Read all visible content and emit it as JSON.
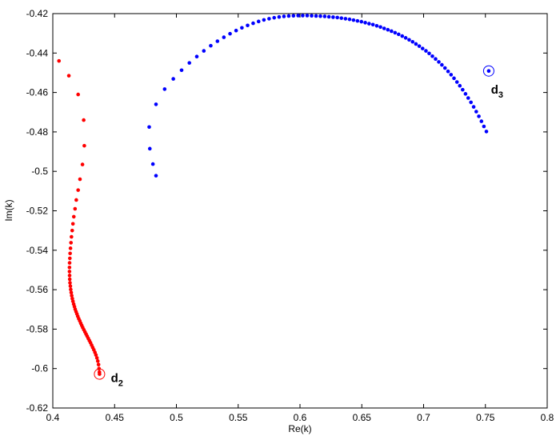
{
  "chart_data": {
    "type": "scatter",
    "xlabel": "Re(k)",
    "ylabel": "Im(k)",
    "xlim": [
      0.4,
      0.8
    ],
    "ylim": [
      -0.62,
      -0.42
    ],
    "xticks": [
      "0.4",
      "0.45",
      "0.5",
      "0.55",
      "0.6",
      "0.65",
      "0.7",
      "0.75",
      "0.8"
    ],
    "yticks": [
      "-0.42",
      "-0.44",
      "-0.46",
      "-0.48",
      "-0.5",
      "-0.52",
      "-0.54",
      "-0.56",
      "-0.58",
      "-0.6",
      "-0.62"
    ],
    "grid": false,
    "series": [
      {
        "color": "#ff0000",
        "marker": "dot",
        "points": [
          [
            0.405,
            -0.444
          ],
          [
            0.413,
            -0.4515
          ],
          [
            0.4205,
            -0.461
          ],
          [
            0.425,
            -0.474
          ],
          [
            0.4255,
            -0.487
          ],
          [
            0.424,
            -0.4965
          ],
          [
            0.422,
            -0.504
          ],
          [
            0.4205,
            -0.5095
          ],
          [
            0.419,
            -0.5145
          ],
          [
            0.418,
            -0.519
          ],
          [
            0.417,
            -0.523
          ],
          [
            0.4163,
            -0.5266
          ],
          [
            0.4157,
            -0.53
          ],
          [
            0.4151,
            -0.5332
          ],
          [
            0.4147,
            -0.5362
          ],
          [
            0.4143,
            -0.539
          ],
          [
            0.414,
            -0.5416
          ],
          [
            0.4138,
            -0.5441
          ],
          [
            0.4136,
            -0.5464
          ],
          [
            0.4135,
            -0.5487
          ],
          [
            0.4135,
            -0.5508
          ],
          [
            0.4136,
            -0.5528
          ],
          [
            0.4137,
            -0.5547
          ],
          [
            0.4139,
            -0.5565
          ],
          [
            0.4142,
            -0.5582
          ],
          [
            0.4145,
            -0.5599
          ],
          [
            0.4149,
            -0.5615
          ],
          [
            0.4153,
            -0.563
          ],
          [
            0.4158,
            -0.5645
          ],
          [
            0.4163,
            -0.5659
          ],
          [
            0.4169,
            -0.5673
          ],
          [
            0.4175,
            -0.5686
          ],
          [
            0.4181,
            -0.5699
          ],
          [
            0.4188,
            -0.5711
          ],
          [
            0.4195,
            -0.5723
          ],
          [
            0.4202,
            -0.5735
          ],
          [
            0.421,
            -0.5747
          ],
          [
            0.4218,
            -0.5758
          ],
          [
            0.4226,
            -0.577
          ],
          [
            0.4234,
            -0.5781
          ],
          [
            0.4242,
            -0.5792
          ],
          [
            0.4251,
            -0.5803
          ],
          [
            0.426,
            -0.5814
          ],
          [
            0.4269,
            -0.5825
          ],
          [
            0.4278,
            -0.5836
          ],
          [
            0.4287,
            -0.5847
          ],
          [
            0.4296,
            -0.5858
          ],
          [
            0.4305,
            -0.5869
          ],
          [
            0.4314,
            -0.5881
          ],
          [
            0.4323,
            -0.5893
          ],
          [
            0.4332,
            -0.5905
          ],
          [
            0.4341,
            -0.5918
          ],
          [
            0.4349,
            -0.5931
          ],
          [
            0.4357,
            -0.5946
          ],
          [
            0.4364,
            -0.5962
          ],
          [
            0.437,
            -0.598
          ],
          [
            0.4374,
            -0.6
          ],
          [
            0.4377,
            -0.6018
          ],
          [
            0.4378,
            -0.6028
          ]
        ],
        "end_marker": [
          0.4378,
          -0.6028
        ]
      },
      {
        "color": "#0000ff",
        "marker": "dot",
        "points": [
          [
            0.4835,
            -0.5022
          ],
          [
            0.481,
            -0.4963
          ],
          [
            0.4785,
            -0.4885
          ],
          [
            0.478,
            -0.4775
          ],
          [
            0.4835,
            -0.466
          ],
          [
            0.4905,
            -0.4583
          ],
          [
            0.4975,
            -0.4531
          ],
          [
            0.5042,
            -0.4487
          ],
          [
            0.5105,
            -0.445
          ],
          [
            0.5165,
            -0.4418
          ],
          [
            0.5222,
            -0.4389
          ],
          [
            0.5278,
            -0.4363
          ],
          [
            0.5332,
            -0.434
          ],
          [
            0.5384,
            -0.432
          ],
          [
            0.5434,
            -0.4302
          ],
          [
            0.5483,
            -0.4286
          ],
          [
            0.553,
            -0.4272
          ],
          [
            0.5576,
            -0.426
          ],
          [
            0.5621,
            -0.4249
          ],
          [
            0.5665,
            -0.424
          ],
          [
            0.5708,
            -0.4232
          ],
          [
            0.575,
            -0.4226
          ],
          [
            0.5791,
            -0.4221
          ],
          [
            0.5831,
            -0.4217
          ],
          [
            0.587,
            -0.4214
          ],
          [
            0.5909,
            -0.4212
          ],
          [
            0.5947,
            -0.4211
          ],
          [
            0.5985,
            -0.421
          ],
          [
            0.6022,
            -0.421
          ],
          [
            0.6058,
            -0.421
          ],
          [
            0.6094,
            -0.4211
          ],
          [
            0.613,
            -0.4212
          ],
          [
            0.6165,
            -0.4213
          ],
          [
            0.62,
            -0.4214
          ],
          [
            0.6234,
            -0.4216
          ],
          [
            0.6268,
            -0.4218
          ],
          [
            0.6302,
            -0.422
          ],
          [
            0.6335,
            -0.4223
          ],
          [
            0.6368,
            -0.4226
          ],
          [
            0.6401,
            -0.4229
          ],
          [
            0.6433,
            -0.4233
          ],
          [
            0.6465,
            -0.4237
          ],
          [
            0.6497,
            -0.4241
          ],
          [
            0.6528,
            -0.4246
          ],
          [
            0.6559,
            -0.4251
          ],
          [
            0.659,
            -0.4256
          ],
          [
            0.6621,
            -0.4262
          ],
          [
            0.6651,
            -0.4268
          ],
          [
            0.6681,
            -0.4275
          ],
          [
            0.6711,
            -0.4282
          ],
          [
            0.674,
            -0.4289
          ],
          [
            0.6769,
            -0.4297
          ],
          [
            0.6798,
            -0.4305
          ],
          [
            0.6827,
            -0.4314
          ],
          [
            0.6855,
            -0.4323
          ],
          [
            0.6883,
            -0.4333
          ],
          [
            0.6911,
            -0.4343
          ],
          [
            0.6938,
            -0.4354
          ],
          [
            0.6965,
            -0.4365
          ],
          [
            0.6992,
            -0.4377
          ],
          [
            0.7019,
            -0.4389
          ],
          [
            0.7045,
            -0.4402
          ],
          [
            0.7071,
            -0.4416
          ],
          [
            0.7097,
            -0.443
          ],
          [
            0.7123,
            -0.4445
          ],
          [
            0.7148,
            -0.446
          ],
          [
            0.7173,
            -0.4476
          ],
          [
            0.7198,
            -0.4493
          ],
          [
            0.7222,
            -0.451
          ],
          [
            0.7246,
            -0.4528
          ],
          [
            0.727,
            -0.4547
          ],
          [
            0.7293,
            -0.4566
          ],
          [
            0.7316,
            -0.4586
          ],
          [
            0.7339,
            -0.4607
          ],
          [
            0.7361,
            -0.4628
          ],
          [
            0.7383,
            -0.465
          ],
          [
            0.7405,
            -0.4673
          ],
          [
            0.7426,
            -0.4697
          ],
          [
            0.7447,
            -0.4721
          ],
          [
            0.7468,
            -0.4746
          ],
          [
            0.7488,
            -0.4772
          ],
          [
            0.7508,
            -0.4798
          ],
          [
            0.7527,
            -0.4491
          ]
        ],
        "end_marker": [
          0.7527,
          -0.4491
        ]
      }
    ],
    "annotations": [
      {
        "main": "d",
        "sub": "2",
        "x": 0.447,
        "y": -0.6069
      },
      {
        "main": "d",
        "sub": "3",
        "x": 0.7545,
        "y": -0.4605
      }
    ]
  }
}
